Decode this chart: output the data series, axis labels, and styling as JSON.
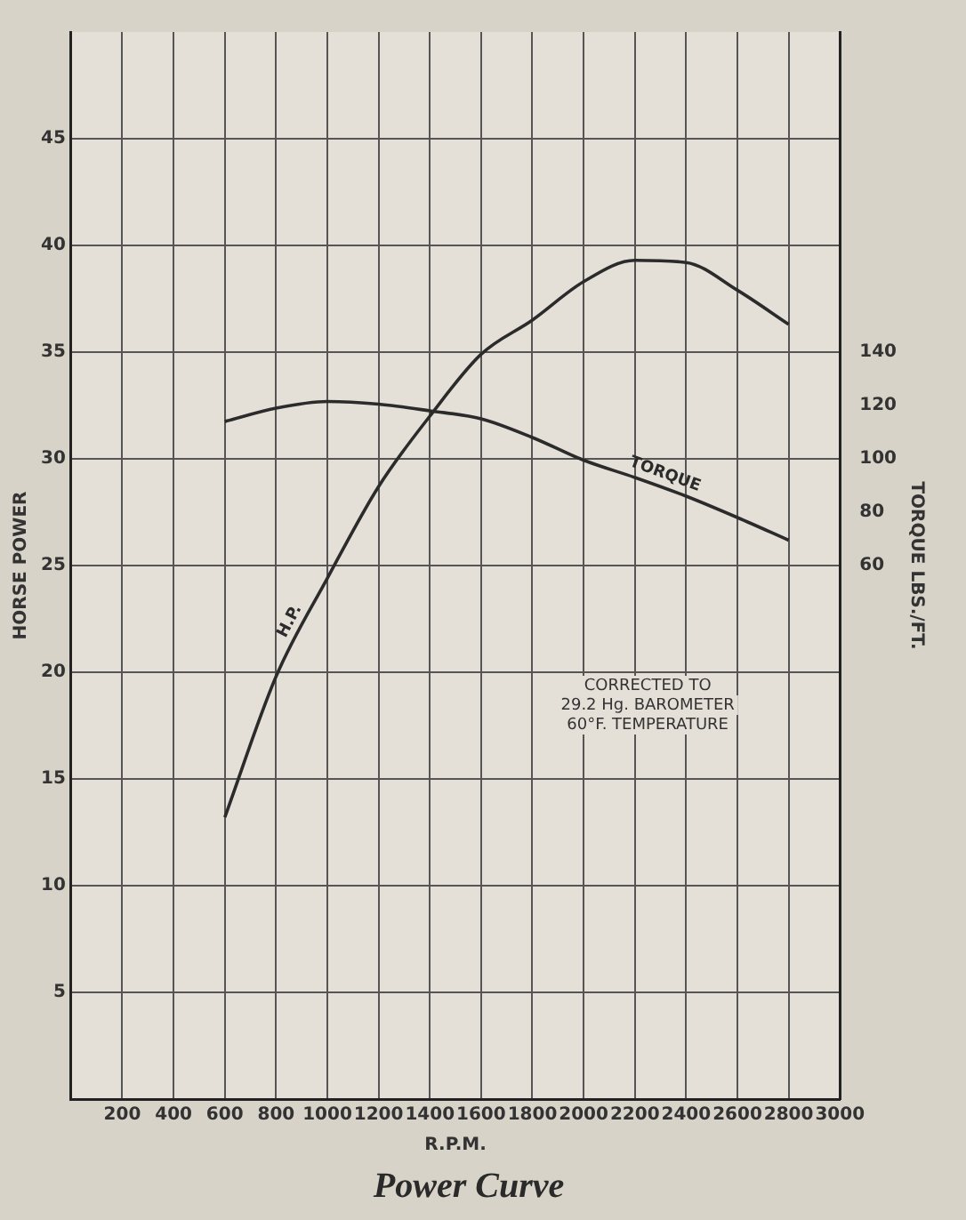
{
  "chart_data": {
    "type": "line",
    "title": "Power Curve",
    "xlabel": "R.P.M.",
    "ylabel": "HORSE POWER",
    "y2label": "TORQUE LBS./FT.",
    "annotations": [
      "CORRECTED TO\n29.2 Hg. BAROMETER\n60°F. TEMPERATURE"
    ],
    "x": [
      600,
      800,
      1000,
      1200,
      1400,
      1600,
      1800,
      2000,
      2200,
      2400,
      2600,
      2800
    ],
    "series": [
      {
        "name": "H.P.",
        "color": "#2b2b2b",
        "values": [
          13.2,
          19.8,
          24.4,
          28.7,
          32,
          34.9,
          36.5,
          38.3,
          39.3,
          39.2,
          37.9,
          36.3
        ]
      },
      {
        "name": "TORQUE",
        "color": "#2b2b2b",
        "axis": "y2",
        "values": [
          114,
          119,
          121.5,
          120.5,
          118,
          115,
          108,
          99.5,
          93,
          86,
          78,
          69.5
        ]
      }
    ],
    "xlim": [
      0,
      3000
    ],
    "xticks": [
      200,
      400,
      600,
      800,
      1000,
      1200,
      1400,
      1600,
      1800,
      2000,
      2200,
      2400,
      2600,
      2800,
      3000
    ],
    "ylim": [
      0,
      50
    ],
    "yticks": [
      5,
      10,
      15,
      20,
      25,
      30,
      35,
      40,
      45
    ],
    "y2lim": [
      -140,
      260
    ],
    "y2ticks": [
      60,
      80,
      100,
      120,
      140
    ],
    "grid": true,
    "legend": false,
    "marker": "none",
    "line_style": "solid"
  }
}
